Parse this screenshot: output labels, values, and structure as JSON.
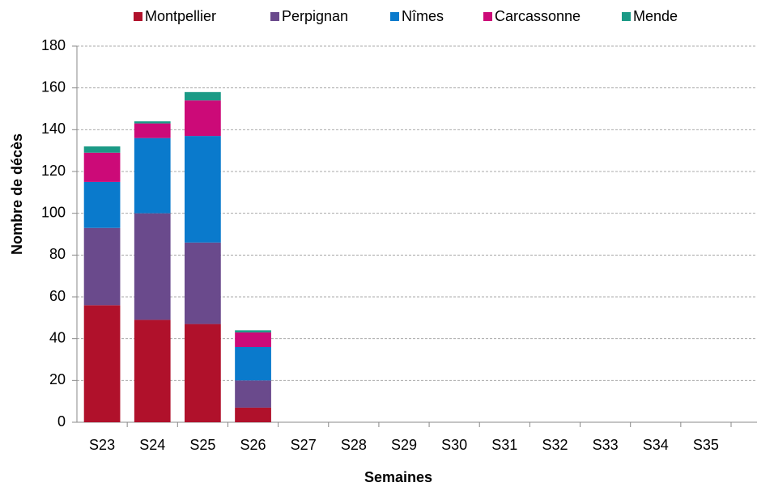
{
  "chart_data": {
    "type": "stacked_bar",
    "x_label": "Semaines",
    "y_label": "Nombre de décès",
    "categories": [
      "S23",
      "S24",
      "S25",
      "S26",
      "S27",
      "S28",
      "S29",
      "S30",
      "S31",
      "S32",
      "S33",
      "S34",
      "S35"
    ],
    "series": [
      {
        "name": "Montpellier",
        "color": "#b0112b",
        "values": [
          56,
          49,
          47,
          7,
          null,
          null,
          null,
          null,
          null,
          null,
          null,
          null,
          null
        ]
      },
      {
        "name": "Perpignan",
        "color": "#6a4a8c",
        "values": [
          37,
          51,
          39,
          13,
          null,
          null,
          null,
          null,
          null,
          null,
          null,
          null,
          null
        ]
      },
      {
        "name": "Nîmes",
        "color": "#0a7acc",
        "values": [
          22,
          36,
          51,
          16,
          null,
          null,
          null,
          null,
          null,
          null,
          null,
          null,
          null
        ]
      },
      {
        "name": "Carcassonne",
        "color": "#cc0a78",
        "values": [
          14,
          7,
          17,
          7,
          null,
          null,
          null,
          null,
          null,
          null,
          null,
          null,
          null
        ]
      },
      {
        "name": "Mende",
        "color": "#1b9a86",
        "values": [
          3,
          1,
          4,
          1,
          null,
          null,
          null,
          null,
          null,
          null,
          null,
          null,
          null
        ]
      }
    ],
    "ylim": [
      0,
      180
    ],
    "yticks": [
      0,
      20,
      40,
      60,
      80,
      100,
      120,
      140,
      160,
      180
    ],
    "grid": true,
    "legend": "top"
  }
}
